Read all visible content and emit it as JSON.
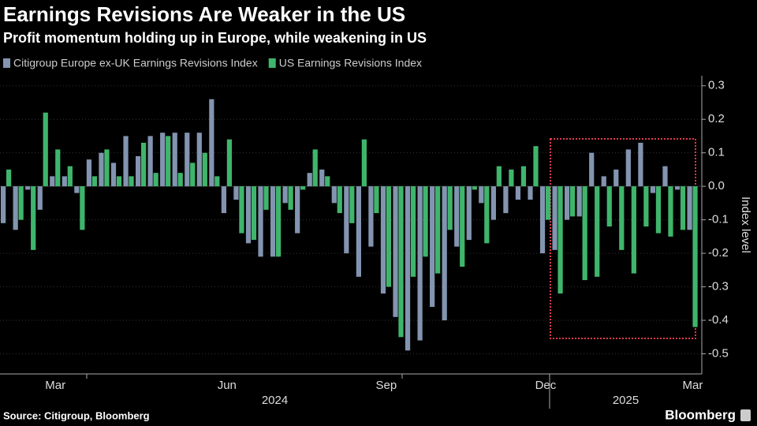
{
  "chart_data": {
    "type": "bar",
    "title": "Earnings Revisions Are Weaker in the US",
    "subtitle": "Profit momentum holding up in Europe, while weakening in US",
    "y_label": "Index level",
    "source": "Source: Citigroup, Bloomberg",
    "brand": "Bloomberg",
    "years": [
      "2024",
      "2025"
    ],
    "categories": [
      null,
      null,
      null,
      null,
      "Mar",
      null,
      null,
      null,
      null,
      null,
      null,
      null,
      null,
      null,
      null,
      null,
      null,
      null,
      "Jun",
      null,
      null,
      null,
      null,
      null,
      null,
      null,
      null,
      null,
      null,
      null,
      null,
      "Sep",
      null,
      null,
      null,
      null,
      null,
      null,
      null,
      null,
      null,
      null,
      null,
      null,
      "Dec",
      null,
      null,
      null,
      null,
      null,
      null,
      null,
      null,
      null,
      null,
      null,
      "Mar"
    ],
    "series": [
      {
        "name": "Citigroup Europe ex-UK Earnings Revisions Index",
        "color": "#8394b0",
        "values": [
          -0.11,
          -0.13,
          -0.01,
          -0.07,
          0.03,
          0.03,
          -0.02,
          0.08,
          0.1,
          0.07,
          0.15,
          0.09,
          0.15,
          0.16,
          0.16,
          0.16,
          0.16,
          0.26,
          -0.08,
          -0.04,
          -0.17,
          -0.21,
          -0.21,
          -0.05,
          -0.14,
          0.04,
          0.05,
          -0.05,
          -0.2,
          -0.27,
          -0.18,
          -0.32,
          -0.39,
          -0.49,
          -0.46,
          -0.36,
          -0.4,
          -0.18,
          -0.16,
          -0.05,
          -0.1,
          -0.08,
          -0.04,
          -0.04,
          -0.2,
          -0.19,
          -0.1,
          -0.09,
          0.1,
          0.03,
          0.05,
          0.11,
          0.13,
          -0.02,
          0.06,
          -0.01,
          -0.13
        ]
      },
      {
        "name": "US Earnings Revisions Index",
        "color": "#3fb56c",
        "values": [
          0.05,
          -0.1,
          -0.19,
          0.22,
          0.11,
          0.06,
          -0.13,
          0.03,
          0.11,
          0.03,
          0.03,
          0.13,
          0.04,
          0.15,
          0.04,
          0.07,
          0.1,
          0.03,
          0.14,
          -0.14,
          -0.16,
          -0.07,
          -0.21,
          -0.07,
          -0.01,
          0.11,
          0.03,
          -0.08,
          -0.11,
          0.14,
          -0.08,
          -0.3,
          -0.45,
          -0.27,
          -0.21,
          -0.26,
          -0.13,
          -0.24,
          -0.01,
          -0.17,
          0.06,
          0.05,
          0.06,
          0.12,
          -0.1,
          -0.32,
          -0.09,
          -0.28,
          -0.27,
          -0.12,
          -0.19,
          -0.26,
          -0.12,
          -0.14,
          -0.15,
          -0.13,
          -0.42
        ]
      }
    ],
    "ylim": [
      -0.56,
      0.33
    ],
    "yticks": [
      0.3,
      0.2,
      0.1,
      {
        "value": 0,
        "label": "0.0"
      },
      -0.1,
      -0.2,
      -0.3,
      -0.4,
      -0.5
    ]
  }
}
